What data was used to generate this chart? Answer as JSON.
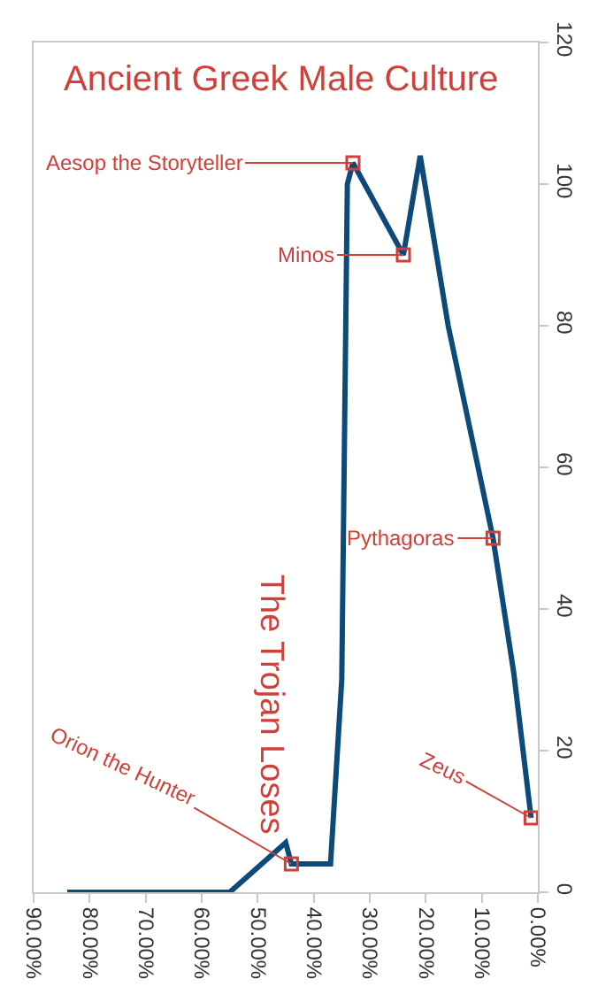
{
  "chart_data": {
    "type": "line",
    "title": "Ancient Greek Male Culture",
    "x": [
      84,
      55,
      45,
      44,
      37,
      35,
      34,
      33,
      24,
      21,
      16,
      8,
      4.3,
      1.2
    ],
    "series": [
      {
        "color": "#0d4a7a",
        "values": [
          0,
          0,
          7,
          4,
          4,
          30,
          100,
          103,
          90,
          104,
          80,
          50,
          31,
          10.5
        ]
      }
    ],
    "xlim": [
      90,
      0
    ],
    "xticks": [
      {
        "value": 90,
        "label": "90.00%"
      },
      {
        "value": 80,
        "label": "80.00%"
      },
      {
        "value": 70,
        "label": "70.00%"
      },
      {
        "value": 60,
        "label": "60.00%"
      },
      {
        "value": 50,
        "label": "50.00%"
      },
      {
        "value": 40,
        "label": "40.00%"
      },
      {
        "value": 30,
        "label": "30.00%"
      },
      {
        "value": 20,
        "label": "20.00%"
      },
      {
        "value": 10,
        "label": "10.00%"
      },
      {
        "value": 0,
        "label": "0.00%"
      }
    ],
    "ylim": [
      0,
      120
    ],
    "yticks": [
      0,
      20,
      40,
      60,
      80,
      100,
      120
    ],
    "annotations": [
      {
        "text": "Aesop the Storyteller",
        "x": 33,
        "y": 103
      },
      {
        "text": "Minos",
        "x": 24,
        "y": 90
      },
      {
        "text": "Pythagoras",
        "x": 8,
        "y": 50
      },
      {
        "text": "Orion the Hunter",
        "x": 44,
        "y": 4
      },
      {
        "text": "Zeus",
        "x": 1.2,
        "y": 10.5
      },
      "The Trojan Loses"
    ],
    "marker": "none",
    "line_style": "solid"
  }
}
